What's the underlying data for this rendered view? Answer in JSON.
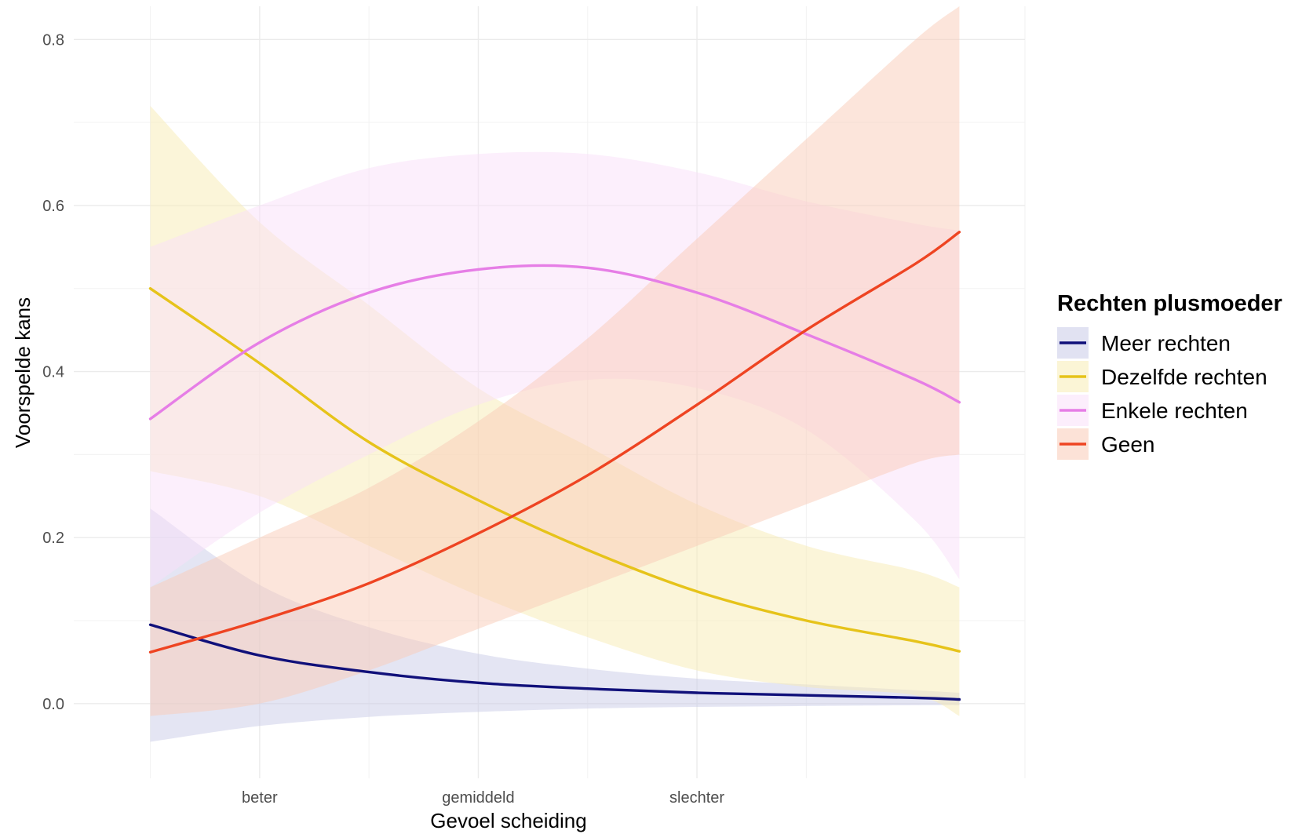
{
  "chart_data": {
    "type": "line",
    "xlabel": "Gevoel scheiding",
    "ylabel": "Voorspelde kans",
    "x_ticks": [
      {
        "value": 2,
        "label": "beter"
      },
      {
        "value": 3,
        "label": "gemiddeld"
      },
      {
        "value": 4,
        "label": "slechter"
      }
    ],
    "xlim": [
      1.15,
      5.5
    ],
    "x_range": [
      1.5,
      5.2
    ],
    "ylim": [
      -0.09,
      0.84
    ],
    "y_ticks": [
      0.0,
      0.2,
      0.4,
      0.6,
      0.8
    ],
    "y_tick_labels": [
      "0.0",
      "0.2",
      "0.4",
      "0.6",
      "0.8"
    ],
    "grid": true,
    "legend_title": "Rechten plusmoeder",
    "legend_position": "right",
    "series": [
      {
        "name": "Meer rechten",
        "color": "#10107a",
        "fill": "#c9cbe8",
        "x": [
          1.5,
          2.0,
          2.5,
          3.0,
          3.5,
          4.0,
          4.5,
          5.0,
          5.2
        ],
        "y": [
          0.095,
          0.058,
          0.038,
          0.025,
          0.018,
          0.013,
          0.01,
          0.007,
          0.005
        ],
        "lower": [
          -0.046,
          -0.027,
          -0.016,
          -0.01,
          -0.006,
          -0.004,
          -0.003,
          -0.002,
          -0.002
        ],
        "upper": [
          0.235,
          0.143,
          0.092,
          0.06,
          0.042,
          0.03,
          0.023,
          0.016,
          0.013
        ]
      },
      {
        "name": "Dezelfde rechten",
        "color": "#e6c31a",
        "fill": "#f8ecb4",
        "x": [
          1.5,
          2.0,
          2.5,
          3.0,
          3.5,
          4.0,
          4.5,
          5.0,
          5.2
        ],
        "y": [
          0.5,
          0.41,
          0.315,
          0.245,
          0.185,
          0.135,
          0.1,
          0.075,
          0.063
        ],
        "lower": [
          0.28,
          0.25,
          0.19,
          0.13,
          0.08,
          0.04,
          0.02,
          0.01,
          -0.015
        ],
        "upper": [
          0.72,
          0.58,
          0.48,
          0.38,
          0.31,
          0.24,
          0.19,
          0.16,
          0.14
        ]
      },
      {
        "name": "Enkele rechten",
        "color": "#e67ee6",
        "fill": "#fae0fa",
        "x": [
          1.5,
          2.0,
          2.5,
          3.0,
          3.5,
          4.0,
          4.5,
          5.0,
          5.2
        ],
        "y": [
          0.343,
          0.435,
          0.495,
          0.523,
          0.525,
          0.495,
          0.445,
          0.39,
          0.363
        ],
        "lower": [
          0.14,
          0.23,
          0.3,
          0.36,
          0.39,
          0.38,
          0.33,
          0.22,
          0.15
        ],
        "upper": [
          0.55,
          0.6,
          0.645,
          0.662,
          0.662,
          0.64,
          0.605,
          0.578,
          0.57
        ]
      },
      {
        "name": "Geen",
        "color": "#ee4422",
        "fill": "#f9cbb7",
        "x": [
          1.5,
          2.0,
          2.5,
          3.0,
          3.5,
          4.0,
          4.5,
          5.0,
          5.2
        ],
        "y": [
          0.062,
          0.1,
          0.145,
          0.205,
          0.275,
          0.36,
          0.45,
          0.53,
          0.568
        ],
        "lower": [
          -0.015,
          0.0,
          0.04,
          0.09,
          0.14,
          0.19,
          0.24,
          0.29,
          0.3
        ],
        "upper": [
          0.14,
          0.2,
          0.26,
          0.34,
          0.44,
          0.56,
          0.68,
          0.8,
          0.84
        ]
      }
    ]
  }
}
